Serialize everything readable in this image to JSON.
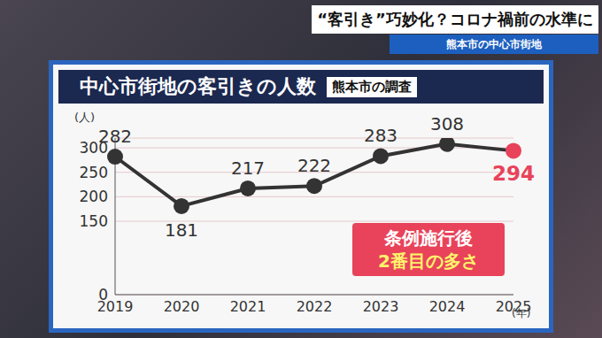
{
  "header": {
    "headline": "“客引き”巧妙化？コロナ禍前の水準に",
    "subheadline": "熊本市の中心市街地"
  },
  "chart_data": {
    "type": "line",
    "title": "中心市街地の客引きの人数",
    "subtitle": "熊本市の調査",
    "y_label": "(人)",
    "x_label": "(年)",
    "categories": [
      "2019",
      "2020",
      "2021",
      "2022",
      "2023",
      "2024",
      "2025"
    ],
    "values": [
      282,
      181,
      217,
      222,
      283,
      308,
      294
    ],
    "color": "#333333",
    "colors": [
      "#333333",
      "#333333",
      "#333333",
      "#333333",
      "#333333",
      "#333333",
      "#e8435a"
    ],
    "marker": "o",
    "ylim": [
      0,
      320
    ],
    "yticks": [
      0,
      150,
      200,
      250,
      300
    ],
    "grid": true,
    "data_labels": true,
    "annotations": [
      "条例施行後",
      "2番目の多さ"
    ]
  }
}
